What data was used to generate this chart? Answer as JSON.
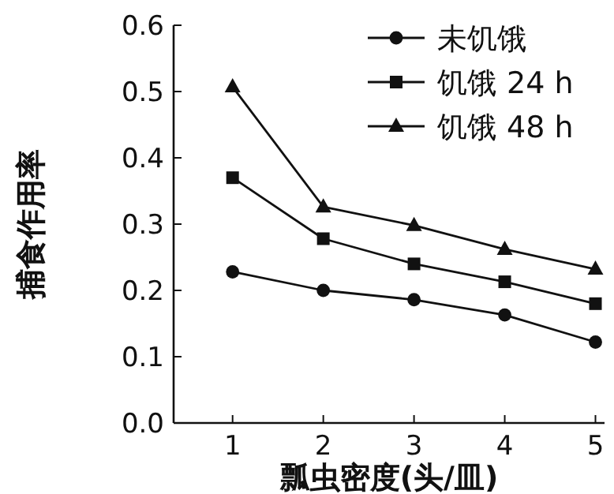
{
  "chart_data": {
    "type": "line",
    "xlabel": "瓢虫密度(头/皿)",
    "ylabel": "捕食作用率",
    "x": [
      1,
      2,
      3,
      4,
      5
    ],
    "xlim": [
      0.35,
      5.1
    ],
    "xticks": [
      1,
      2,
      3,
      4,
      5
    ],
    "ylim": [
      0,
      0.6
    ],
    "yticks": [
      {
        "value": 0,
        "label": "0.0"
      },
      0.1,
      0.2,
      0.3,
      0.4,
      0.5,
      0.6
    ],
    "grid": false,
    "legend": "top right",
    "line_style": "solid",
    "series": [
      {
        "name": "未饥饿",
        "color": "#111111",
        "marker": "circle",
        "values": [
          0.228,
          0.2,
          0.186,
          0.163,
          0.122
        ]
      },
      {
        "name": "饥饿 24 h",
        "color": "#111111",
        "marker": "square",
        "values": [
          0.37,
          0.278,
          0.24,
          0.213,
          0.18
        ]
      },
      {
        "name": "饥饿 48 h",
        "color": "#111111",
        "marker": "triangle",
        "values": [
          0.507,
          0.326,
          0.298,
          0.262,
          0.232
        ]
      }
    ]
  }
}
